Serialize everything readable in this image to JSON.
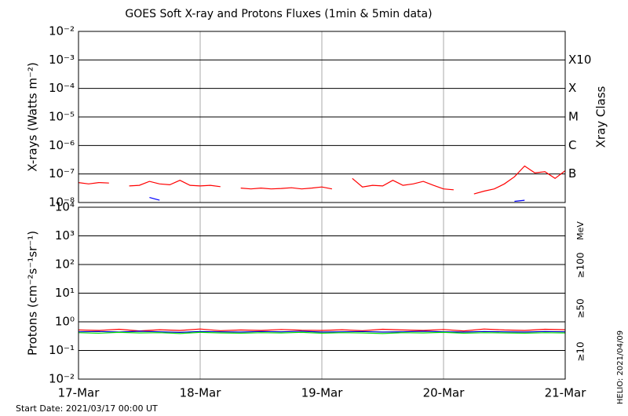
{
  "chart_data": [
    {
      "type": "line",
      "title": "GOES Soft X-ray and Protons Fluxes   (1min & 5min data)",
      "ylabel": "X-rays (Watts m⁻²)",
      "log_scale": true,
      "grid": true,
      "ylim": [
        1e-08,
        0.01
      ],
      "yticks": [
        {
          "value": 1e-08,
          "label": "10⁻⁸"
        },
        {
          "value": 1e-07,
          "label": "10⁻⁷"
        },
        {
          "value": 1e-06,
          "label": "10⁻⁶"
        },
        {
          "value": 1e-05,
          "label": "10⁻⁵"
        },
        {
          "value": 0.0001,
          "label": "10⁻⁴"
        },
        {
          "value": 0.001,
          "label": "10⁻³"
        },
        {
          "value": 0.01,
          "label": "10⁻²"
        }
      ],
      "y2label": "Xray Class",
      "y2lim": [
        1e-08,
        0.01
      ],
      "y2ticks": [
        {
          "value": 1e-07,
          "label": "B"
        },
        {
          "value": 1e-06,
          "label": "C"
        },
        {
          "value": 1e-05,
          "label": "M"
        },
        {
          "value": 0.0001,
          "label": "X"
        },
        {
          "value": 0.001,
          "label": "X10"
        }
      ],
      "xlim": [
        0,
        96
      ],
      "x": [
        0,
        2,
        4,
        6,
        8,
        10,
        12,
        14,
        16,
        18,
        20,
        22,
        24,
        26,
        28,
        30,
        32,
        34,
        36,
        38,
        40,
        42,
        44,
        46,
        48,
        50,
        52,
        54,
        56,
        58,
        60,
        62,
        64,
        66,
        68,
        70,
        72,
        74,
        76,
        78,
        80,
        82,
        84,
        86,
        88,
        90,
        92,
        94,
        96
      ],
      "series": [
        {
          "color": "#ff0000",
          "values": [
            5e-08,
            4.5e-08,
            5e-08,
            4.8e-08,
            null,
            3.8e-08,
            4e-08,
            5.5e-08,
            4.5e-08,
            4.2e-08,
            6e-08,
            4e-08,
            3.8e-08,
            4e-08,
            3.6e-08,
            null,
            3.2e-08,
            3e-08,
            3.2e-08,
            3e-08,
            3.1e-08,
            3.3e-08,
            3e-08,
            3.2e-08,
            3.5e-08,
            3e-08,
            null,
            7e-08,
            3.5e-08,
            4e-08,
            3.8e-08,
            6e-08,
            4e-08,
            4.5e-08,
            5.5e-08,
            4e-08,
            3e-08,
            2.8e-08,
            null,
            2e-08,
            2.5e-08,
            3e-08,
            4.5e-08,
            8e-08,
            1.9e-07,
            1.1e-07,
            1.2e-07,
            7e-08,
            1.3e-07
          ]
        },
        {
          "color": "#0000ff",
          "values": [
            null,
            null,
            null,
            null,
            null,
            null,
            null,
            1.5e-08,
            1.2e-08,
            null,
            null,
            null,
            null,
            null,
            null,
            null,
            null,
            null,
            null,
            null,
            null,
            null,
            null,
            null,
            null,
            null,
            null,
            null,
            null,
            null,
            null,
            null,
            null,
            null,
            null,
            null,
            null,
            null,
            null,
            null,
            null,
            null,
            null,
            1.1e-08,
            1.2e-08,
            null,
            null,
            null,
            null
          ]
        }
      ]
    },
    {
      "type": "line",
      "ylabel": "Protons (cm⁻²s⁻¹sr⁻¹)",
      "log_scale": true,
      "grid": true,
      "ylim": [
        0.01,
        10000.0
      ],
      "yticks": [
        {
          "value": 0.01,
          "label": "10⁻²"
        },
        {
          "value": 0.1,
          "label": "10⁻¹"
        },
        {
          "value": 1,
          "label": "10⁰"
        },
        {
          "value": 10,
          "label": "10¹"
        },
        {
          "value": 100,
          "label": "10²"
        },
        {
          "value": 1000,
          "label": "10³"
        },
        {
          "value": 10000,
          "label": "10⁴"
        }
      ],
      "threshold": 10,
      "xlim": [
        0,
        96
      ],
      "xticks": [
        {
          "value": 0,
          "label": "17-Mar"
        },
        {
          "value": 24,
          "label": "18-Mar"
        },
        {
          "value": 48,
          "label": "19-Mar"
        },
        {
          "value": 72,
          "label": "20-Mar"
        },
        {
          "value": 96,
          "label": "21-Mar"
        }
      ],
      "legend_title": "MeV",
      "x": [
        0,
        4,
        8,
        12,
        16,
        20,
        24,
        28,
        32,
        36,
        40,
        44,
        48,
        52,
        56,
        60,
        64,
        68,
        72,
        76,
        80,
        84,
        88,
        92,
        96
      ],
      "series": [
        {
          "name": "≥10",
          "color": "#ff0000",
          "values": [
            0.52,
            0.5,
            0.55,
            0.48,
            0.53,
            0.5,
            0.56,
            0.49,
            0.52,
            0.5,
            0.54,
            0.51,
            0.5,
            0.53,
            0.49,
            0.55,
            0.52,
            0.5,
            0.54,
            0.48,
            0.56,
            0.52,
            0.5,
            0.55,
            0.53
          ]
        },
        {
          "name": "≥50",
          "color": "#0000cc",
          "values": [
            0.45,
            0.46,
            0.44,
            0.47,
            0.45,
            0.43,
            0.46,
            0.45,
            0.44,
            0.46,
            0.45,
            0.47,
            0.44,
            0.45,
            0.46,
            0.44,
            0.45,
            0.47,
            0.45,
            0.44,
            0.46,
            0.45,
            0.44,
            0.46,
            0.45
          ]
        },
        {
          "name": "≥100",
          "color": "#00dd00",
          "values": [
            0.42,
            0.4,
            0.43,
            0.41,
            0.42,
            0.39,
            0.43,
            0.41,
            0.4,
            0.42,
            0.41,
            0.43,
            0.4,
            0.42,
            0.41,
            0.39,
            0.42,
            0.41,
            0.43,
            0.4,
            0.42,
            0.41,
            0.4,
            0.42,
            0.41
          ]
        }
      ]
    }
  ],
  "footer": {
    "start_date": "Start Date: 2021/03/17 00:00 UT",
    "credit": "HELIO: 2021/04/09"
  }
}
